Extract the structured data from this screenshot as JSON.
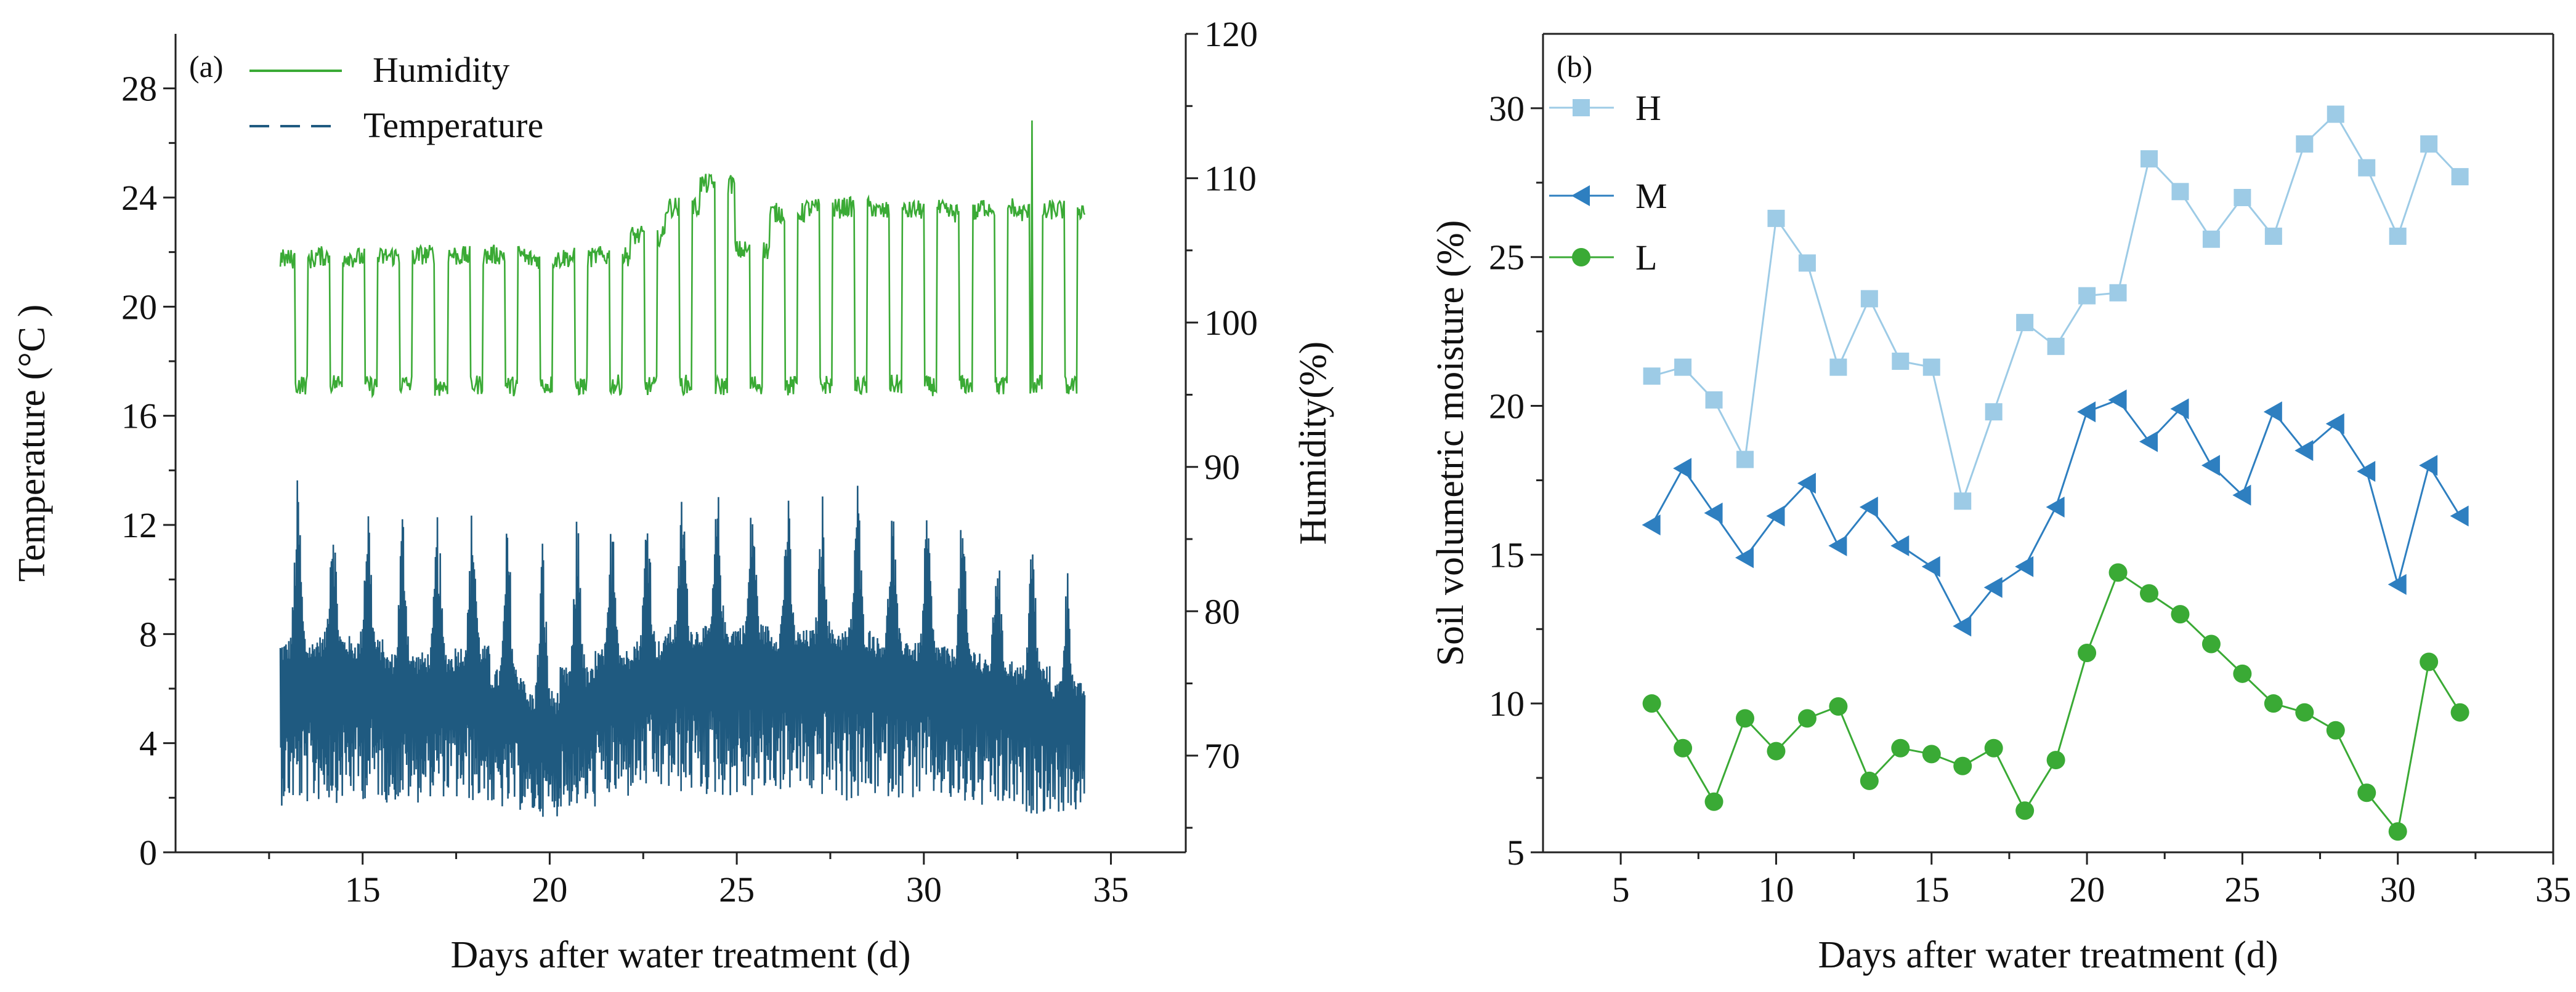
{
  "colors": {
    "humidity": "#3aaa35",
    "temperature": "#1f5a80",
    "H": "#9dcbe6",
    "M": "#2e7fc0",
    "L": "#3aaa35",
    "axis": "#222222"
  },
  "chart_data": [
    {
      "type": "line",
      "panel_label": "(a)",
      "xlabel": "Days after water treatment (d)",
      "ylabel": "Temperature (°C )",
      "y2label": "Humidity(%)",
      "xlim": [
        10,
        37
      ],
      "ylim": [
        0,
        30
      ],
      "y2lim": [
        63.3,
        120
      ],
      "x_ticks": [
        15,
        20,
        25,
        30,
        35
      ],
      "y_ticks": [
        0,
        4,
        8,
        12,
        16,
        20,
        24,
        28
      ],
      "y2_ticks": [
        70,
        80,
        90,
        100,
        110,
        120
      ],
      "legend_position": "top-left",
      "series": [
        {
          "name": "Humidity",
          "axis": "right",
          "style": "solid",
          "x_range": [
            12.8,
            34.3
          ],
          "daily_high_pct": [
            104.4,
            104.6,
            104.5,
            104.6,
            104.7,
            104.6,
            104.7,
            104.4,
            104.5,
            104.6,
            106.0,
            108.0,
            109.6,
            105.0,
            107.6,
            107.9,
            108.0,
            107.7,
            107.8,
            107.6,
            108.0,
            107.6,
            107.8
          ],
          "daily_low_pct": [
            95.7,
            95.8,
            95.6,
            95.7,
            95.6,
            95.7,
            95.6,
            95.7,
            95.6,
            95.7,
            95.6,
            95.7,
            95.6,
            95.7,
            95.6,
            95.7,
            95.6,
            95.7,
            95.6,
            95.7,
            95.6,
            95.7,
            95.6
          ],
          "peak_pct": 114.0
        },
        {
          "name": "Temperature",
          "axis": "left",
          "style": "dashed",
          "x_range": [
            12.8,
            34.3
          ],
          "daily_max_c": [
            13.8,
            13.2,
            13.3,
            12.8,
            12.6,
            13.0,
            12.2,
            11.7,
            12.8,
            13.1,
            13.2,
            13.6,
            13.4,
            13.3,
            13.4,
            13.2,
            13.9,
            13.0,
            12.7,
            12.5,
            11.8,
            11.8,
            10.5
          ],
          "daily_min_c": [
            1.7,
            1.8,
            1.9,
            1.8,
            2.0,
            1.8,
            1.5,
            1.3,
            1.6,
            1.9,
            2.2,
            2.1,
            2.0,
            1.9,
            2.2,
            2.0,
            1.8,
            2.0,
            1.9,
            1.6,
            1.5,
            1.4,
            1.4
          ],
          "daily_mean_c": [
            5.8,
            6.2,
            6.0,
            5.5,
            5.6,
            5.8,
            4.9,
            4.0,
            4.8,
            5.6,
            6.0,
            6.5,
            6.6,
            6.7,
            6.4,
            6.5,
            6.3,
            6.2,
            6.0,
            5.8,
            5.5,
            5.2,
            4.8
          ]
        }
      ]
    },
    {
      "type": "line",
      "panel_label": "(b)",
      "xlabel": "Days after water treatment (d)",
      "ylabel": "Soil volumetric moisture (%)",
      "xlim": [
        2.5,
        35
      ],
      "ylim": [
        5,
        32.5
      ],
      "x_ticks": [
        5,
        10,
        15,
        20,
        25,
        30,
        35
      ],
      "y_ticks": [
        5,
        10,
        15,
        20,
        25,
        30
      ],
      "legend_position": "top-left",
      "x": [
        6,
        7,
        8,
        9,
        10,
        11,
        12,
        13,
        14,
        15,
        16,
        17,
        18,
        19,
        20,
        21,
        22,
        23,
        24,
        25,
        26,
        27,
        28,
        29,
        30,
        31,
        32
      ],
      "series": [
        {
          "name": "H",
          "marker": "square",
          "values": [
            21.0,
            21.3,
            20.2,
            18.2,
            26.3,
            24.8,
            21.3,
            23.6,
            21.5,
            21.3,
            16.8,
            19.8,
            22.8,
            22.0,
            23.7,
            23.8,
            28.3,
            27.2,
            25.6,
            27.0,
            25.7,
            28.8,
            29.8,
            28.0,
            25.7,
            28.8,
            27.7
          ]
        },
        {
          "name": "M",
          "marker": "triangle-left",
          "values": [
            16.0,
            17.9,
            16.4,
            14.9,
            16.3,
            17.4,
            15.3,
            16.6,
            15.3,
            14.6,
            12.6,
            13.9,
            14.6,
            16.6,
            19.8,
            20.2,
            18.8,
            19.9,
            18.0,
            17.0,
            19.8,
            18.5,
            19.4,
            17.8,
            14.0,
            18.0,
            16.3
          ]
        },
        {
          "name": "L",
          "marker": "circle",
          "values": [
            10.0,
            8.5,
            6.7,
            9.5,
            8.4,
            9.5,
            9.9,
            7.4,
            8.5,
            8.3,
            7.9,
            8.5,
            6.4,
            8.1,
            11.7,
            14.4,
            13.7,
            13.0,
            12.0,
            11.0,
            10.0,
            9.7,
            9.1,
            7.0,
            5.7,
            11.4,
            9.7
          ]
        }
      ]
    }
  ]
}
